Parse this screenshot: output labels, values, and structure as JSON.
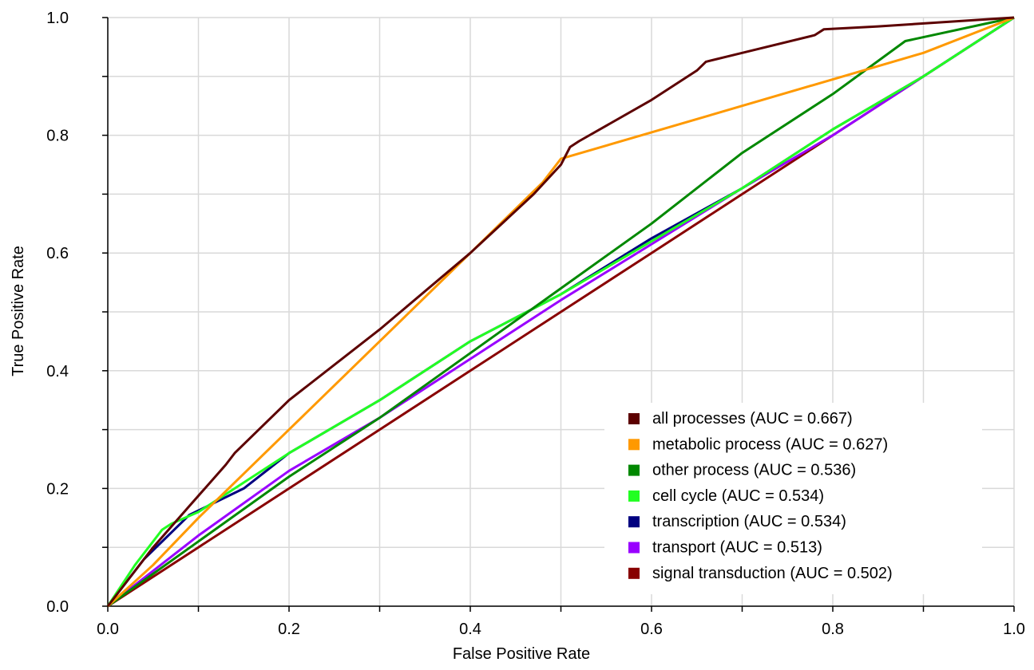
{
  "chart_data": {
    "type": "line",
    "title": "",
    "xlabel": "False Positive Rate",
    "ylabel": "True Positive Rate",
    "xlim": [
      0.0,
      1.0
    ],
    "ylim": [
      0.0,
      1.0
    ],
    "x_ticks": [
      0.0,
      0.2,
      0.4,
      0.6,
      0.8,
      1.0
    ],
    "x_tick_labels": [
      "0.0",
      "0.2",
      "0.4",
      "0.6",
      "0.8",
      "1.0"
    ],
    "y_ticks": [
      0.0,
      0.2,
      0.4,
      0.6,
      0.8,
      1.0
    ],
    "y_tick_labels": [
      "0.0",
      "0.2",
      "0.4",
      "0.6",
      "0.8",
      "1.0"
    ],
    "x_minor_ticks": [
      0.1,
      0.3,
      0.5,
      0.7,
      0.9
    ],
    "y_minor_ticks": [
      0.1,
      0.3,
      0.5,
      0.7,
      0.9
    ],
    "grid": true,
    "legend_position": "bottom-right",
    "series": [
      {
        "name": "all processes (AUC = 0.667)",
        "color": "#5c0000",
        "points": [
          [
            0,
            0
          ],
          [
            0.02,
            0.04
          ],
          [
            0.05,
            0.1
          ],
          [
            0.09,
            0.17
          ],
          [
            0.13,
            0.24
          ],
          [
            0.14,
            0.26
          ],
          [
            0.2,
            0.35
          ],
          [
            0.3,
            0.47
          ],
          [
            0.4,
            0.6
          ],
          [
            0.47,
            0.7
          ],
          [
            0.5,
            0.75
          ],
          [
            0.51,
            0.78
          ],
          [
            0.52,
            0.79
          ],
          [
            0.6,
            0.86
          ],
          [
            0.65,
            0.91
          ],
          [
            0.66,
            0.925
          ],
          [
            0.7,
            0.94
          ],
          [
            0.78,
            0.97
          ],
          [
            0.79,
            0.98
          ],
          [
            0.85,
            0.985
          ],
          [
            0.9,
            0.99
          ],
          [
            1.0,
            1.0
          ]
        ]
      },
      {
        "name": "metabolic process (AUC = 0.627)",
        "color": "#ff9900",
        "points": [
          [
            0,
            0
          ],
          [
            0.05,
            0.07
          ],
          [
            0.1,
            0.15
          ],
          [
            0.2,
            0.3
          ],
          [
            0.3,
            0.45
          ],
          [
            0.4,
            0.6
          ],
          [
            0.48,
            0.72
          ],
          [
            0.5,
            0.76
          ],
          [
            0.7,
            0.85
          ],
          [
            0.9,
            0.94
          ],
          [
            1.0,
            1.0
          ]
        ]
      },
      {
        "name": "other process (AUC = 0.536)",
        "color": "#008800",
        "points": [
          [
            0,
            0
          ],
          [
            0.1,
            0.11
          ],
          [
            0.2,
            0.22
          ],
          [
            0.3,
            0.32
          ],
          [
            0.4,
            0.43
          ],
          [
            0.5,
            0.54
          ],
          [
            0.6,
            0.65
          ],
          [
            0.7,
            0.77
          ],
          [
            0.8,
            0.87
          ],
          [
            0.88,
            0.96
          ],
          [
            1.0,
            1.0
          ]
        ]
      },
      {
        "name": "cell cycle (AUC = 0.534)",
        "color": "#22ff22",
        "points": [
          [
            0,
            0
          ],
          [
            0.03,
            0.07
          ],
          [
            0.06,
            0.13
          ],
          [
            0.07,
            0.14
          ],
          [
            0.1,
            0.16
          ],
          [
            0.2,
            0.26
          ],
          [
            0.3,
            0.35
          ],
          [
            0.4,
            0.45
          ],
          [
            0.5,
            0.53
          ],
          [
            0.6,
            0.62
          ],
          [
            0.7,
            0.71
          ],
          [
            0.8,
            0.81
          ],
          [
            0.9,
            0.9
          ],
          [
            1.0,
            1.0
          ]
        ]
      },
      {
        "name": "transcription (AUC = 0.534)",
        "color": "#000080",
        "points": [
          [
            0,
            0
          ],
          [
            0.04,
            0.08
          ],
          [
            0.08,
            0.14
          ],
          [
            0.09,
            0.155
          ],
          [
            0.15,
            0.2
          ],
          [
            0.2,
            0.26
          ],
          [
            0.3,
            0.35
          ],
          [
            0.4,
            0.45
          ],
          [
            0.5,
            0.53
          ],
          [
            0.6,
            0.625
          ],
          [
            0.7,
            0.71
          ],
          [
            0.8,
            0.81
          ],
          [
            0.9,
            0.9
          ],
          [
            1.0,
            1.0
          ]
        ]
      },
      {
        "name": "transport (AUC = 0.513)",
        "color": "#9900ff",
        "points": [
          [
            0,
            0
          ],
          [
            0.1,
            0.12
          ],
          [
            0.2,
            0.23
          ],
          [
            0.3,
            0.32
          ],
          [
            0.4,
            0.42
          ],
          [
            0.5,
            0.52
          ],
          [
            0.6,
            0.615
          ],
          [
            0.7,
            0.71
          ],
          [
            0.8,
            0.8
          ],
          [
            0.9,
            0.9
          ],
          [
            1.0,
            1.0
          ]
        ]
      },
      {
        "name": "signal transduction (AUC = 0.502)",
        "color": "#880000",
        "points": [
          [
            0,
            0
          ],
          [
            0.1,
            0.1
          ],
          [
            0.2,
            0.2
          ],
          [
            0.3,
            0.3
          ],
          [
            0.4,
            0.4
          ],
          [
            0.5,
            0.5
          ],
          [
            0.6,
            0.6
          ],
          [
            0.7,
            0.7
          ],
          [
            0.8,
            0.8
          ],
          [
            0.9,
            0.9
          ],
          [
            1.0,
            1.0
          ]
        ]
      }
    ]
  }
}
